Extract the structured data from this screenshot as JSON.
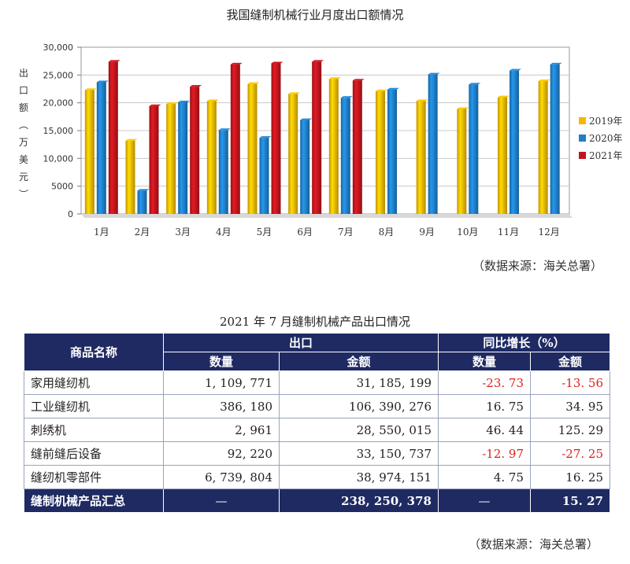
{
  "chart_data": {
    "type": "bar",
    "title": "我国缝制机械行业月度出口额情况",
    "ylabel": "出口额（万美元）",
    "categories": [
      "1月",
      "2月",
      "3月",
      "4月",
      "5月",
      "6月",
      "7月",
      "8月",
      "9月",
      "10月",
      "11月",
      "12月"
    ],
    "yticks": [
      "30,000",
      "25,000",
      "20,000",
      "15,000",
      "10,000",
      "5000",
      "0"
    ],
    "ytick_values": [
      30000,
      25000,
      20000,
      15000,
      10000,
      5000,
      0
    ],
    "ylim": [
      0,
      30000
    ],
    "grid": true,
    "legend_position": "right",
    "series": [
      {
        "name": "2019年",
        "color": "#f5b800",
        "values": [
          22300,
          13200,
          19800,
          20300,
          23400,
          21600,
          24300,
          22100,
          20300,
          18900,
          21000,
          23900
        ]
      },
      {
        "name": "2020年",
        "color": "#1f7fc8",
        "values": [
          23700,
          4200,
          20100,
          15100,
          13700,
          16900,
          20900,
          22400,
          25100,
          23300,
          25800,
          26900
        ]
      },
      {
        "name": "2021年",
        "color": "#c0151d",
        "values": [
          27400,
          19400,
          22900,
          26900,
          27100,
          27400,
          24000,
          null,
          null,
          null,
          null,
          null
        ]
      }
    ]
  },
  "source_text": "（数据来源：海关总署）",
  "table": {
    "title": "2021 年 7 月缝制机械产品出口情况",
    "header": {
      "name": "商品名称",
      "export": "出口",
      "growth": "同比增长（%）",
      "qty": "数量",
      "amount": "金额",
      "qty2": "数量",
      "amount2": "金额"
    },
    "rows": [
      {
        "name": "家用缝纫机",
        "qty": "1, 109, 771",
        "amount": "31, 185, 199",
        "qty_growth": "-23. 73",
        "amount_growth": "-13. 56"
      },
      {
        "name": "工业缝纫机",
        "qty": "386, 180",
        "amount": "106, 390, 276",
        "qty_growth": "16. 75",
        "amount_growth": "34. 95"
      },
      {
        "name": "刺绣机",
        "qty": "2, 961",
        "amount": "28, 550, 015",
        "qty_growth": "46. 44",
        "amount_growth": "125. 29"
      },
      {
        "name": "缝前缝后设备",
        "qty": "92, 220",
        "amount": "33, 150, 737",
        "qty_growth": "-12. 97",
        "amount_growth": "-27. 25"
      },
      {
        "name": "缝纫机零部件",
        "qty": "6, 739, 804",
        "amount": "38, 974, 151",
        "qty_growth": "4. 75",
        "amount_growth": "16. 25"
      }
    ],
    "total": {
      "name": "缝制机械产品汇总",
      "qty": "—",
      "amount": "238, 250, 378",
      "qty_growth": "—",
      "amount_growth": "15. 27"
    }
  }
}
